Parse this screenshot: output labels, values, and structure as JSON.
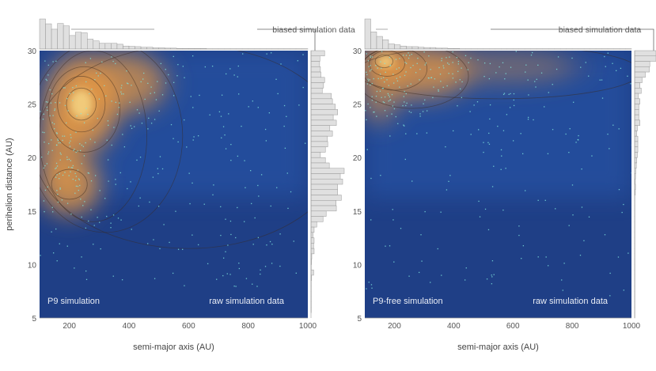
{
  "chart_data": [
    {
      "type": "heatmap",
      "panel_label": "P9 simulation",
      "corner_label": "raw simulation data",
      "hist_label": "biased simulation data",
      "xlabel": "semi-major axis (AU)",
      "ylabel": "perihelion distance (AU)",
      "xlim": [
        100,
        1000
      ],
      "ylim": [
        5,
        30
      ],
      "xticks": [
        "200",
        "400",
        "600",
        "800",
        "1000"
      ],
      "xtick_values": [
        200,
        400,
        600,
        800,
        1000
      ],
      "yticks": [
        "30",
        "25",
        "20",
        "15",
        "10",
        "5"
      ],
      "ytick_values": [
        30,
        25,
        20,
        15,
        10,
        5
      ],
      "density_peaks": [
        {
          "a": 240,
          "q": 25,
          "sa": 110,
          "sq": 4,
          "w": 1.0
        },
        {
          "a": 200,
          "q": 17.5,
          "sa": 90,
          "sq": 2.5,
          "w": 0.9
        },
        {
          "a": 380,
          "q": 27,
          "sa": 130,
          "sq": 2.5,
          "w": 0.75
        },
        {
          "a": 160,
          "q": 21,
          "sa": 60,
          "sq": 3,
          "w": 0.7
        }
      ],
      "contours": [
        {
          "a": 240,
          "q": 25,
          "ra": 50,
          "rq": 1.5
        },
        {
          "a": 240,
          "q": 25,
          "ra": 80,
          "rq": 2.6
        },
        {
          "a": 250,
          "q": 24.5,
          "ra": 120,
          "rq": 4
        },
        {
          "a": 200,
          "q": 17.5,
          "ra": 60,
          "rq": 1.4
        },
        {
          "a": 280,
          "q": 22,
          "ra": 180,
          "rq": 8
        },
        {
          "a": 320,
          "q": 22,
          "ra": 260,
          "rq": 9
        },
        {
          "a": 600,
          "q": 21,
          "ra": 520,
          "rq": 9.5
        }
      ],
      "top_hist": {
        "bin_start": 100,
        "bin_width": 20,
        "values": [
          100,
          84,
          66,
          85,
          77,
          45,
          56,
          54,
          33,
          27,
          19,
          19,
          19,
          16,
          10,
          9,
          8,
          6,
          6,
          4,
          4,
          3,
          3,
          2,
          2,
          2,
          2,
          2,
          1,
          1,
          1,
          1,
          1,
          1,
          1,
          1,
          1,
          1,
          1,
          1,
          1,
          1,
          1,
          1,
          1
        ]
      },
      "right_hist": {
        "bin_start": 30,
        "bin_width": -0.5,
        "values": [
          52,
          34,
          33,
          36,
          38,
          52,
          48,
          43,
          78,
          82,
          93,
          102,
          85,
          97,
          72,
          82,
          63,
          64,
          55,
          36,
          55,
          70,
          127,
          112,
          121,
          102,
          102,
          116,
          96,
          97,
          58,
          46,
          22,
          12,
          8,
          12,
          10,
          12,
          3,
          2,
          1,
          10,
          2,
          1,
          1,
          1,
          1,
          1,
          1,
          0
        ]
      }
    },
    {
      "type": "heatmap",
      "panel_label": "P9-free simulation",
      "corner_label": "raw simulation data",
      "hist_label": "biased simulation data",
      "xlabel": "semi-major axis (AU)",
      "ylabel": "",
      "xlim": [
        100,
        1000
      ],
      "ylim": [
        5,
        30
      ],
      "xticks": [
        "200",
        "400",
        "600",
        "800",
        "1000"
      ],
      "xtick_values": [
        200,
        400,
        600,
        800,
        1000
      ],
      "yticks": [
        "30",
        "25",
        "20",
        "15",
        "10",
        "5"
      ],
      "ytick_values": [
        30,
        25,
        20,
        15,
        10,
        5
      ],
      "density_peaks": [
        {
          "a": 170,
          "q": 29,
          "sa": 80,
          "sq": 1.5,
          "w": 1.0
        },
        {
          "a": 280,
          "q": 28,
          "sa": 160,
          "sq": 2.2,
          "w": 0.8
        },
        {
          "a": 150,
          "q": 26,
          "sa": 60,
          "sq": 2.5,
          "w": 0.55
        },
        {
          "a": 550,
          "q": 28.5,
          "sa": 250,
          "sq": 1.5,
          "w": 0.35
        }
      ],
      "contours": [
        {
          "a": 165,
          "q": 29,
          "ra": 30,
          "rq": 0.6
        },
        {
          "a": 175,
          "q": 28.8,
          "ra": 60,
          "rq": 1.2
        },
        {
          "a": 200,
          "q": 28.3,
          "ra": 110,
          "rq": 2.0
        },
        {
          "a": 260,
          "q": 27.6,
          "ra": 190,
          "rq": 3.0
        },
        {
          "a": 550,
          "q": 28.0,
          "ra": 480,
          "rq": 2.5
        }
      ],
      "top_hist": {
        "bin_start": 100,
        "bin_width": 20,
        "values": [
          100,
          57,
          42,
          31,
          17,
          14,
          10,
          8,
          8,
          6,
          5,
          5,
          3,
          3,
          2,
          2,
          1,
          1,
          1,
          1,
          1,
          1,
          1,
          1,
          1,
          1,
          1,
          1,
          1,
          1,
          1,
          1,
          1,
          1,
          1,
          1,
          1,
          1,
          1,
          1,
          1,
          1,
          1,
          1,
          1
        ]
      },
      "right_hist": {
        "bin_start": 30,
        "bin_width": -0.5,
        "values": [
          100,
          100,
          71,
          69,
          50,
          35,
          25,
          31,
          18,
          25,
          20,
          20,
          20,
          25,
          13,
          10,
          15,
          15,
          15,
          13,
          10,
          8,
          5,
          4,
          3,
          4,
          3,
          1,
          1,
          1,
          1,
          1,
          1,
          1,
          1,
          1,
          1,
          1,
          1,
          1,
          1,
          1,
          1,
          1,
          1,
          1,
          1,
          1,
          1,
          1
        ]
      }
    }
  ]
}
